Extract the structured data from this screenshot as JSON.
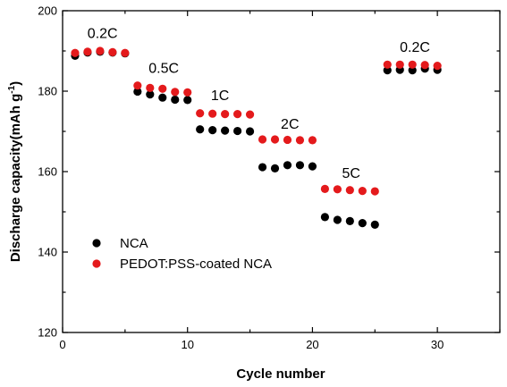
{
  "chart_data": {
    "type": "scatter",
    "xlabel": "Cycle number",
    "ylabel_main": "Discharge capacity(mAh g",
    "ylabel_sup": "-1",
    "ylabel_close": ")",
    "xlim": [
      0,
      35
    ],
    "ylim": [
      120,
      200
    ],
    "xticks": [
      0,
      10,
      20,
      30
    ],
    "yticks": [
      120,
      140,
      160,
      180,
      200
    ],
    "x_minor_step": 5,
    "y_minor_step": 10,
    "grid": false,
    "legend_position": "bottom-left",
    "series": [
      {
        "name": "NCA",
        "color": "#000000",
        "x": [
          1,
          2,
          3,
          4,
          5,
          6,
          7,
          8,
          9,
          10,
          11,
          12,
          13,
          14,
          15,
          16,
          17,
          18,
          19,
          20,
          21,
          22,
          23,
          24,
          25,
          26,
          27,
          28,
          29,
          30
        ],
        "y": [
          188.8,
          189.6,
          189.8,
          189.6,
          189.4,
          179.9,
          179.2,
          178.4,
          177.9,
          177.8,
          170.5,
          170.3,
          170.2,
          170.1,
          170.0,
          161.1,
          160.8,
          161.6,
          161.6,
          161.3,
          148.7,
          148.0,
          147.7,
          147.2,
          146.8,
          185.2,
          185.3,
          185.2,
          185.6,
          185.3
        ]
      },
      {
        "name": "PEDOT:PSS-coated NCA",
        "color": "#e41a1c",
        "x": [
          1,
          2,
          3,
          4,
          5,
          6,
          7,
          8,
          9,
          10,
          11,
          12,
          13,
          14,
          15,
          16,
          17,
          18,
          19,
          20,
          21,
          22,
          23,
          24,
          25,
          26,
          27,
          28,
          29,
          30
        ],
        "y": [
          189.5,
          189.8,
          190.0,
          189.7,
          189.5,
          181.4,
          180.8,
          180.6,
          179.8,
          179.7,
          174.5,
          174.4,
          174.3,
          174.3,
          174.2,
          168.0,
          168.0,
          167.9,
          167.8,
          167.8,
          155.7,
          155.6,
          155.4,
          155.2,
          155.1,
          186.6,
          186.6,
          186.6,
          186.5,
          186.3
        ]
      }
    ],
    "annotations": [
      {
        "text": "0.2C",
        "x": 3.2,
        "y": 193.2
      },
      {
        "text": "0.5C",
        "x": 8.1,
        "y": 184.6
      },
      {
        "text": "1C",
        "x": 12.6,
        "y": 177.8
      },
      {
        "text": "2C",
        "x": 18.2,
        "y": 170.7
      },
      {
        "text": "5C",
        "x": 23.1,
        "y": 158.5
      },
      {
        "text": "0.2C",
        "x": 28.2,
        "y": 189.8
      }
    ]
  }
}
